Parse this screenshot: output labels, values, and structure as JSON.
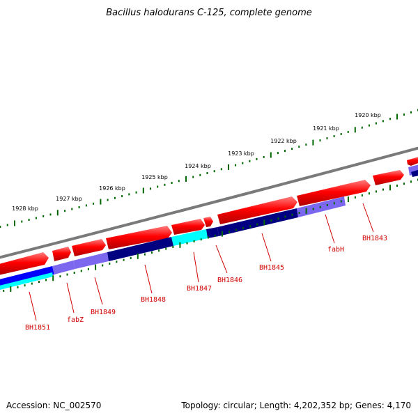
{
  "title": "Bacillus halodurans C-125, complete genome",
  "footer": {
    "accession": "Accession: NC_002570",
    "summary": "Topology: circular; Length: 4,202,352 bp; Genes: 4,170"
  },
  "kbp_labels": [
    "1920 kbp",
    "1921 kbp",
    "1922 kbp",
    "1923 kbp",
    "1924 kbp",
    "1925 kbp",
    "1926 kbp",
    "1927 kbp",
    "1928 kbp"
  ],
  "gene_labels": [
    "BH1843",
    "fabH",
    "BH1845",
    "BH1846",
    "BH1847",
    "BH1848",
    "BH1849",
    "fabZ",
    "BH1851"
  ],
  "colors": {
    "backbone": "#808080",
    "forward_gene": "#ff0000",
    "tick": "#006600",
    "label": "#d00000",
    "navy": "#000080",
    "lavender": "#7b68ee",
    "cyan": "#00ffff",
    "blue": "#0000ff"
  }
}
